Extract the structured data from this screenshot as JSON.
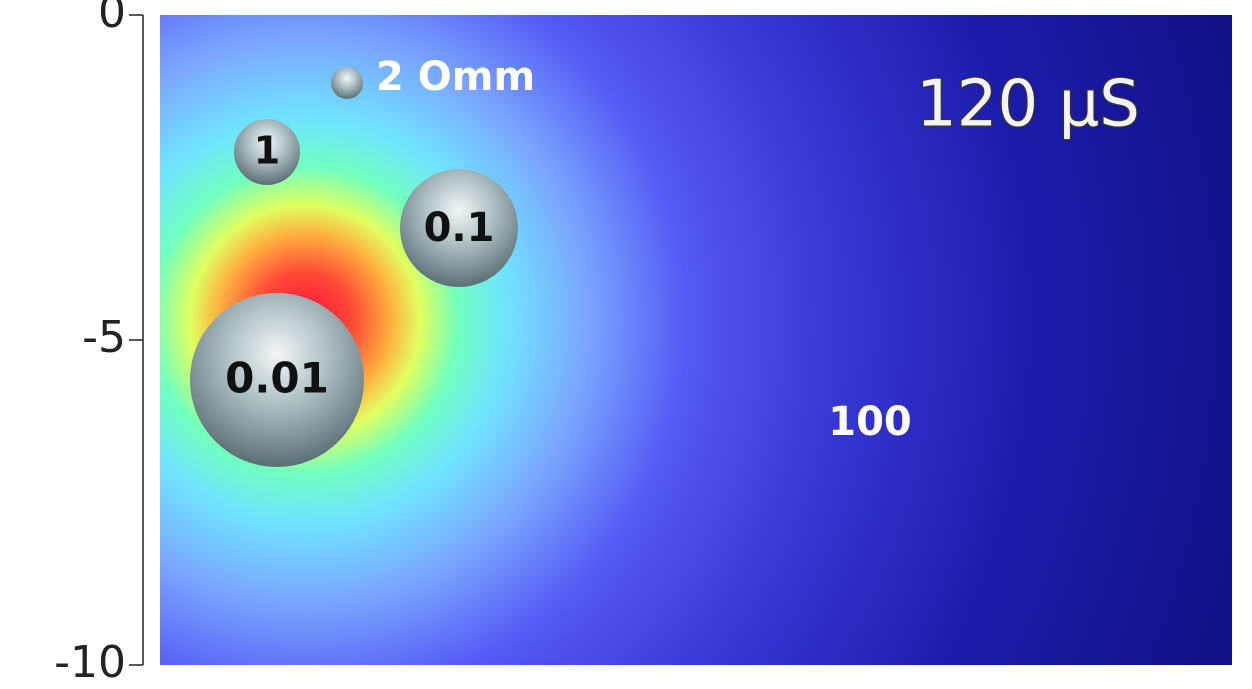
{
  "y_axis": {
    "ylim": [
      -10,
      0
    ],
    "yticks": [
      0,
      -5,
      -10
    ]
  },
  "time_label": "120 μS",
  "field_label": "100",
  "spheres": [
    {
      "label": "2 Omm"
    },
    {
      "label": "1"
    },
    {
      "label": "0.1"
    },
    {
      "label": "0.01"
    }
  ]
}
